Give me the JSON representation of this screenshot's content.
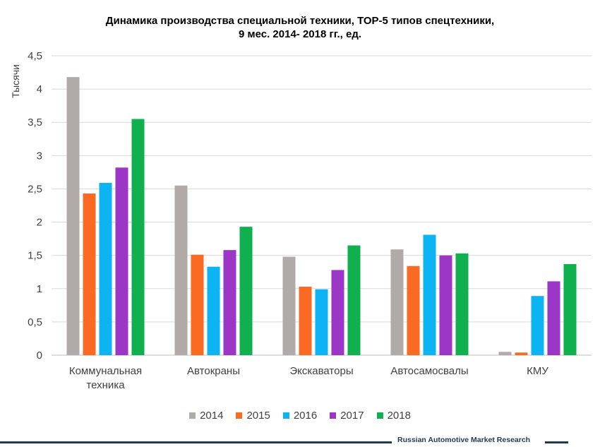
{
  "chart_data": {
    "type": "bar",
    "title_lines": [
      "Динамика производства специальной техники, ТОР-5 типов спецтехники,",
      "9 мес. 2014- 2018 гг., ед."
    ],
    "ylabel": "Тысячи",
    "ylim": [
      0,
      4.5
    ],
    "yticks": [
      0,
      0.5,
      1,
      1.5,
      2,
      2.5,
      3,
      3.5,
      4,
      4.5
    ],
    "ytick_labels": [
      "0",
      "0,5",
      "1",
      "1,5",
      "2",
      "2,5",
      "3",
      "3,5",
      "4",
      "4,5"
    ],
    "grid": true,
    "legend_position": "bottom",
    "categories": [
      [
        "Коммунальная",
        "техника"
      ],
      [
        "Автокраны"
      ],
      [
        "Экскаваторы"
      ],
      [
        "Автосамосвалы"
      ],
      [
        "КМУ"
      ]
    ],
    "series": [
      {
        "name": "2014",
        "color": "#b0aaa8",
        "values": [
          4.18,
          2.55,
          1.48,
          1.59,
          0.05
        ]
      },
      {
        "name": "2015",
        "color": "#fb6a22",
        "values": [
          2.43,
          1.51,
          1.03,
          1.34,
          0.04
        ]
      },
      {
        "name": "2016",
        "color": "#0cb4f3",
        "values": [
          2.59,
          1.33,
          0.99,
          1.81,
          0.89
        ]
      },
      {
        "name": "2017",
        "color": "#9b36c6",
        "values": [
          2.82,
          1.58,
          1.28,
          1.5,
          1.11
        ]
      },
      {
        "name": "2018",
        "color": "#11b04f",
        "values": [
          3.55,
          1.93,
          1.65,
          1.53,
          1.37
        ]
      }
    ]
  },
  "footer": {
    "source": "Russian Automotive Market Research"
  }
}
